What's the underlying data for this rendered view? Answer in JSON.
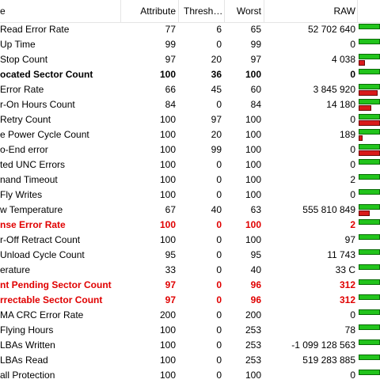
{
  "headers": {
    "name": "e",
    "attribute": "Attribute",
    "threshold": "Thresh…",
    "worst": "Worst",
    "raw": "RAW"
  },
  "colors": {
    "ok": "#22c41c",
    "bad": "#d91a1a",
    "critical_text": "#e00000"
  },
  "rows": [
    {
      "name": "Read Error Rate",
      "attribute": "77",
      "threshold": "6",
      "worst": "65",
      "raw": "52 702 640",
      "style": "normal",
      "red_level": 0
    },
    {
      "name": "Up Time",
      "attribute": "99",
      "threshold": "0",
      "worst": "99",
      "raw": "0",
      "style": "normal",
      "red_level": 0
    },
    {
      "name": "Stop Count",
      "attribute": "97",
      "threshold": "20",
      "worst": "97",
      "raw": "4 038",
      "style": "normal",
      "red_level": 0.3
    },
    {
      "name": "ocated Sector Count",
      "attribute": "100",
      "threshold": "36",
      "worst": "100",
      "raw": "0",
      "style": "bold",
      "red_level": 0
    },
    {
      "name": "Error Rate",
      "attribute": "66",
      "threshold": "45",
      "worst": "60",
      "raw": "3 845 920",
      "style": "normal",
      "red_level": 0.9
    },
    {
      "name": "r-On Hours Count",
      "attribute": "84",
      "threshold": "0",
      "worst": "84",
      "raw": "14 180",
      "style": "normal",
      "red_level": 0.6
    },
    {
      "name": "Retry Count",
      "attribute": "100",
      "threshold": "97",
      "worst": "100",
      "raw": "0",
      "style": "normal",
      "red_level": 1
    },
    {
      "name": "e Power Cycle Count",
      "attribute": "100",
      "threshold": "20",
      "worst": "100",
      "raw": "189",
      "style": "normal",
      "red_level": 0.2
    },
    {
      "name": "o-End error",
      "attribute": "100",
      "threshold": "99",
      "worst": "100",
      "raw": "0",
      "style": "normal",
      "red_level": 1
    },
    {
      "name": "ted UNC Errors",
      "attribute": "100",
      "threshold": "0",
      "worst": "100",
      "raw": "0",
      "style": "normal",
      "red_level": 0
    },
    {
      "name": "nand Timeout",
      "attribute": "100",
      "threshold": "0",
      "worst": "100",
      "raw": "2",
      "style": "normal",
      "red_level": 0
    },
    {
      "name": "Fly Writes",
      "attribute": "100",
      "threshold": "0",
      "worst": "100",
      "raw": "0",
      "style": "normal",
      "red_level": 0
    },
    {
      "name": "w Temperature",
      "attribute": "67",
      "threshold": "40",
      "worst": "63",
      "raw": "555 810 849",
      "style": "normal",
      "red_level": 0.5
    },
    {
      "name": "nse Error Rate",
      "attribute": "100",
      "threshold": "0",
      "worst": "100",
      "raw": "2",
      "style": "critical",
      "red_level": 0
    },
    {
      "name": "r-Off Retract Count",
      "attribute": "100",
      "threshold": "0",
      "worst": "100",
      "raw": "97",
      "style": "normal",
      "red_level": 0
    },
    {
      "name": "Unload Cycle Count",
      "attribute": "95",
      "threshold": "0",
      "worst": "95",
      "raw": "11 743",
      "style": "normal",
      "red_level": 0
    },
    {
      "name": "erature",
      "attribute": "33",
      "threshold": "0",
      "worst": "40",
      "raw": "33 C",
      "style": "normal",
      "red_level": 0
    },
    {
      "name": "nt Pending Sector Count",
      "attribute": "97",
      "threshold": "0",
      "worst": "96",
      "raw": "312",
      "style": "critical",
      "red_level": 0
    },
    {
      "name": "rrectable Sector Count",
      "attribute": "97",
      "threshold": "0",
      "worst": "96",
      "raw": "312",
      "style": "critical",
      "red_level": 0
    },
    {
      "name": "MA CRC Error Rate",
      "attribute": "200",
      "threshold": "0",
      "worst": "200",
      "raw": "0",
      "style": "normal",
      "red_level": 0
    },
    {
      "name": "Flying Hours",
      "attribute": "100",
      "threshold": "0",
      "worst": "253",
      "raw": "78",
      "style": "normal",
      "red_level": 0
    },
    {
      "name": "LBAs Written",
      "attribute": "100",
      "threshold": "0",
      "worst": "253",
      "raw": "-1 099 128 563",
      "style": "normal",
      "red_level": 0
    },
    {
      "name": "LBAs Read",
      "attribute": "100",
      "threshold": "0",
      "worst": "253",
      "raw": "519 283 885",
      "style": "normal",
      "red_level": 0
    },
    {
      "name": "all Protection",
      "attribute": "100",
      "threshold": "0",
      "worst": "100",
      "raw": "0",
      "style": "normal",
      "red_level": 0
    }
  ]
}
